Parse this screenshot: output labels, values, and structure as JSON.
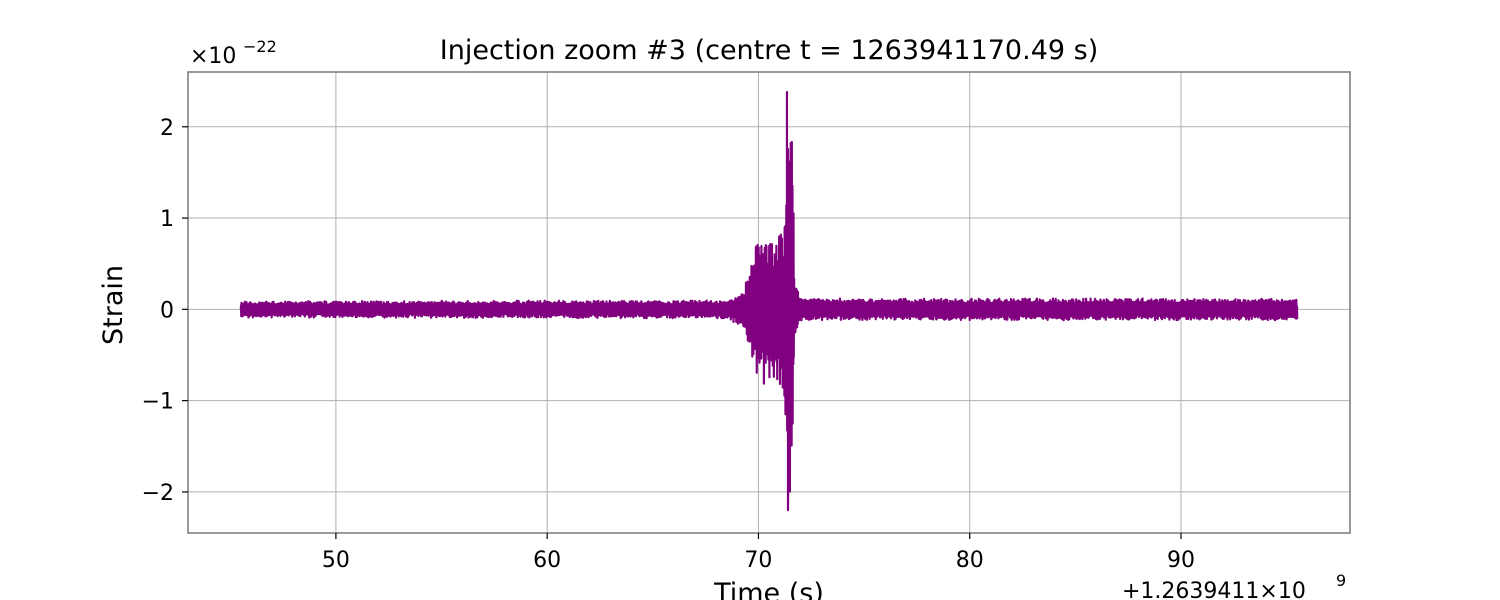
{
  "chart_data": {
    "type": "line",
    "title": "Injection zoom #3  (centre t = 1263941170.49 s)",
    "xlabel": "Time (s)",
    "ylabel": "Strain",
    "x_offset_label": "+1.2639411×10",
    "x_offset_exponent": "9",
    "y_scale_label": "×10",
    "y_scale_exponent": "−22",
    "xlim": [
      43,
      98
    ],
    "ylim": [
      -2.45,
      2.6
    ],
    "x_ticks": [
      50,
      60,
      70,
      80,
      90
    ],
    "x_tick_labels": [
      "50",
      "60",
      "70",
      "80",
      "90"
    ],
    "y_ticks": [
      2,
      1,
      0,
      -1,
      -2
    ],
    "y_tick_labels": [
      "2",
      "1",
      "0",
      "−1",
      "−2"
    ],
    "grid": true,
    "line_color": "#800080",
    "series": [
      {
        "x_range": [
          45.5,
          95.5
        ],
        "noise_amplitude": 0.1,
        "envelope": [
          {
            "x": 45.5,
            "amp": 0.09
          },
          {
            "x": 68.5,
            "amp": 0.1
          },
          {
            "x": 69.3,
            "amp": 0.2
          },
          {
            "x": 69.8,
            "amp": 0.65
          },
          {
            "x": 70.2,
            "amp": 0.85
          },
          {
            "x": 70.8,
            "amp": 0.85
          },
          {
            "x": 71.2,
            "amp": 0.9
          },
          {
            "x": 71.3,
            "amp": 1.3
          },
          {
            "x": 71.5,
            "amp": 2.4
          },
          {
            "x": 71.6,
            "amp": 2.2
          },
          {
            "x": 71.7,
            "amp": 0.35
          },
          {
            "x": 72.0,
            "amp": 0.12
          },
          {
            "x": 95.5,
            "amp": 0.12
          }
        ],
        "peak_max": {
          "x": 71.35,
          "y": 2.38
        },
        "peak_min": {
          "x": 71.4,
          "y": -2.2
        }
      }
    ]
  }
}
